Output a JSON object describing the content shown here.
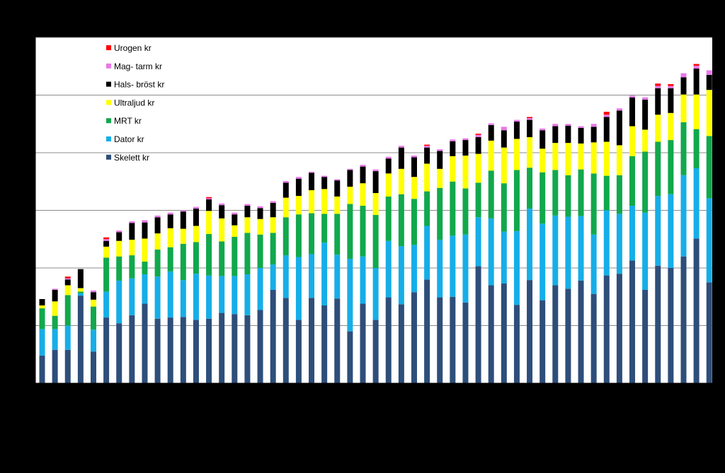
{
  "chart_data": {
    "type": "bar",
    "stacked": true,
    "ylim": [
      0,
      6
    ],
    "grid": true,
    "legend_position": "top-left",
    "series": [
      {
        "name": "Skelett kr",
        "color": "#2E4E7A",
        "values": [
          0.48,
          0.58,
          0.58,
          1.52,
          0.55,
          1.14,
          1.04,
          1.18,
          1.38,
          1.12,
          1.14,
          1.15,
          1.1,
          1.12,
          1.22,
          1.2,
          1.18,
          1.27,
          1.62,
          1.48,
          1.1,
          1.48,
          1.35,
          1.47,
          0.9,
          1.38,
          1.1,
          1.49,
          1.37,
          1.58,
          1.8,
          1.49,
          1.5,
          1.4,
          2.03,
          1.7,
          1.73,
          1.36,
          1.79,
          1.44,
          1.7,
          1.64,
          1.78,
          1.55,
          1.87,
          1.9,
          2.13,
          1.62,
          2.04,
          2.0,
          2.2,
          2.51,
          1.75
        ]
      },
      {
        "name": "Dator kr",
        "color": "#16AEE8",
        "values": [
          0.46,
          0.36,
          0.42,
          0.04,
          0.38,
          0.45,
          0.74,
          0.64,
          0.51,
          0.73,
          0.8,
          0.64,
          0.8,
          0.75,
          0.64,
          0.66,
          0.71,
          0.73,
          0.44,
          0.74,
          1.09,
          0.76,
          1.09,
          0.76,
          1.26,
          0.82,
          0.9,
          0.98,
          1.01,
          0.82,
          0.93,
          1.0,
          1.06,
          1.18,
          0.85,
          1.16,
          0.9,
          1.28,
          1.24,
          1.33,
          1.21,
          1.25,
          1.12,
          1.03,
          1.13,
          1.04,
          0.95,
          1.34,
          1.21,
          1.28,
          1.41,
          1.22,
          1.46
        ]
      },
      {
        "name": "MRT kr",
        "color": "#11A84C",
        "values": [
          0.36,
          0.23,
          0.53,
          0.03,
          0.4,
          0.59,
          0.42,
          0.4,
          0.22,
          0.47,
          0.42,
          0.63,
          0.55,
          0.72,
          0.6,
          0.68,
          0.72,
          0.58,
          0.55,
          0.66,
          0.74,
          0.71,
          0.5,
          0.71,
          0.95,
          0.88,
          0.92,
          0.77,
          0.9,
          0.8,
          0.6,
          0.9,
          0.94,
          0.8,
          0.6,
          0.83,
          0.84,
          1.06,
          0.71,
          0.89,
          0.79,
          0.72,
          0.81,
          1.06,
          0.6,
          0.67,
          0.86,
          1.06,
          0.94,
          0.94,
          0.92,
          0.68,
          1.08
        ]
      },
      {
        "name": "Ultraljud kr",
        "color": "#FFFF00",
        "values": [
          0.05,
          0.25,
          0.17,
          0.06,
          0.12,
          0.19,
          0.27,
          0.27,
          0.4,
          0.28,
          0.33,
          0.26,
          0.28,
          0.4,
          0.4,
          0.2,
          0.27,
          0.27,
          0.27,
          0.34,
          0.32,
          0.4,
          0.43,
          0.3,
          0.3,
          0.39,
          0.38,
          0.4,
          0.44,
          0.38,
          0.48,
          0.33,
          0.44,
          0.57,
          0.5,
          0.52,
          0.62,
          0.54,
          0.53,
          0.41,
          0.47,
          0.56,
          0.45,
          0.54,
          0.59,
          0.52,
          0.52,
          0.38,
          0.47,
          0.47,
          0.48,
          0.6,
          0.8
        ]
      },
      {
        "name": "Hals- bröst kr",
        "color": "#000000",
        "values": [
          0.11,
          0.2,
          0.1,
          0.33,
          0.13,
          0.1,
          0.15,
          0.29,
          0.28,
          0.28,
          0.24,
          0.3,
          0.3,
          0.2,
          0.23,
          0.19,
          0.2,
          0.19,
          0.25,
          0.26,
          0.3,
          0.3,
          0.21,
          0.28,
          0.29,
          0.29,
          0.38,
          0.26,
          0.37,
          0.34,
          0.28,
          0.31,
          0.26,
          0.27,
          0.29,
          0.27,
          0.3,
          0.3,
          0.3,
          0.32,
          0.29,
          0.3,
          0.27,
          0.27,
          0.43,
          0.6,
          0.5,
          0.52,
          0.46,
          0.43,
          0.3,
          0.45,
          0.26
        ]
      },
      {
        "name": "Mag- tarm kr",
        "color": "#E879E8",
        "values": [
          0.0,
          0.02,
          0.02,
          0.0,
          0.03,
          0.03,
          0.03,
          0.03,
          0.04,
          0.03,
          0.03,
          0.02,
          0.03,
          0.02,
          0.03,
          0.03,
          0.03,
          0.03,
          0.03,
          0.03,
          0.03,
          0.02,
          0.02,
          0.02,
          0.02,
          0.03,
          0.03,
          0.03,
          0.03,
          0.03,
          0.03,
          0.03,
          0.03,
          0.03,
          0.04,
          0.03,
          0.06,
          0.03,
          0.03,
          0.03,
          0.04,
          0.03,
          0.03,
          0.05,
          0.04,
          0.04,
          0.03,
          0.04,
          0.04,
          0.04,
          0.07,
          0.05,
          0.08
        ]
      },
      {
        "name": "Urogen kr",
        "color": "#FF0000",
        "values": [
          0.0,
          0.0,
          0.03,
          0.0,
          0.0,
          0.03,
          0.0,
          0.0,
          0.0,
          0.0,
          0.0,
          0.0,
          0.0,
          0.02,
          0.0,
          0.0,
          0.0,
          0.0,
          0.0,
          0.0,
          0.0,
          0.0,
          0.0,
          0.0,
          0.0,
          0.0,
          0.0,
          0.0,
          0.0,
          0.0,
          0.02,
          0.0,
          0.0,
          0.0,
          0.02,
          0.0,
          0.0,
          0.0,
          0.02,
          0.0,
          0.0,
          0.0,
          0.0,
          0.0,
          0.05,
          0.0,
          0.0,
          0.0,
          0.04,
          0.03,
          0.0,
          0.03,
          0.0
        ]
      }
    ]
  }
}
